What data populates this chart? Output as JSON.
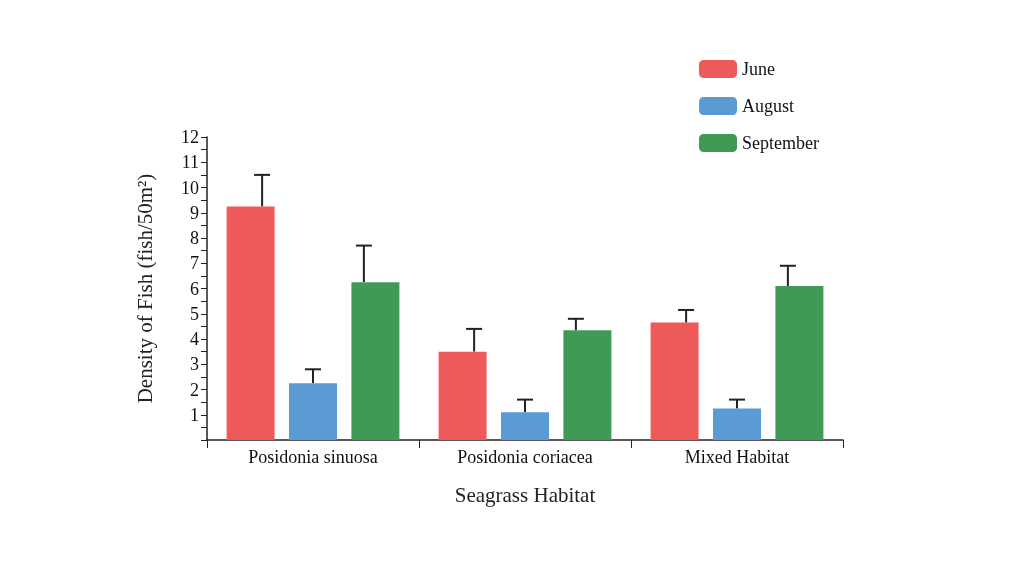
{
  "chart_data": {
    "type": "bar",
    "xlabel": "Seagrass Habitat",
    "ylabel": "Density of Fish (fish/50m²)",
    "categories": [
      "Posidonia sinuosa",
      "Posidonia coriacea",
      "Mixed Habitat"
    ],
    "series": [
      {
        "name": "June",
        "color": "#ee5a5a",
        "values": [
          9.25,
          3.5,
          4.65
        ],
        "errors": [
          [
            9.25,
            10.5
          ],
          [
            3.5,
            4.4
          ],
          [
            4.65,
            5.15
          ]
        ]
      },
      {
        "name": "August",
        "color": "#5b9bd5",
        "values": [
          2.25,
          1.1,
          1.25
        ],
        "errors": [
          [
            2.25,
            2.8
          ],
          [
            1.1,
            1.6
          ],
          [
            1.25,
            1.6
          ]
        ]
      },
      {
        "name": "September",
        "color": "#3f9a55",
        "values": [
          6.25,
          4.35,
          6.1
        ],
        "errors": [
          [
            6.25,
            7.7
          ],
          [
            4.35,
            4.8
          ],
          [
            6.1,
            6.9
          ]
        ]
      }
    ],
    "ylim": [
      0,
      12
    ],
    "yticks": [
      {
        "value": 0,
        "label": null
      },
      {
        "value": 0.5,
        "label": null
      },
      1,
      {
        "value": 1.5,
        "label": null
      },
      2,
      {
        "value": 2.5,
        "label": null
      },
      3,
      {
        "value": 3.5,
        "label": null
      },
      4,
      {
        "value": 4.5,
        "label": null
      },
      5,
      {
        "value": 5.5,
        "label": null
      },
      6,
      {
        "value": 6.5,
        "label": null
      },
      7,
      {
        "value": 7.5,
        "label": null
      },
      8,
      {
        "value": 8.5,
        "label": null
      },
      9,
      {
        "value": 9.5,
        "label": null
      },
      10,
      {
        "value": 10.5,
        "label": null
      },
      11,
      {
        "value": 11.5,
        "label": null
      },
      12
    ],
    "grid": false,
    "legend": "top right"
  }
}
